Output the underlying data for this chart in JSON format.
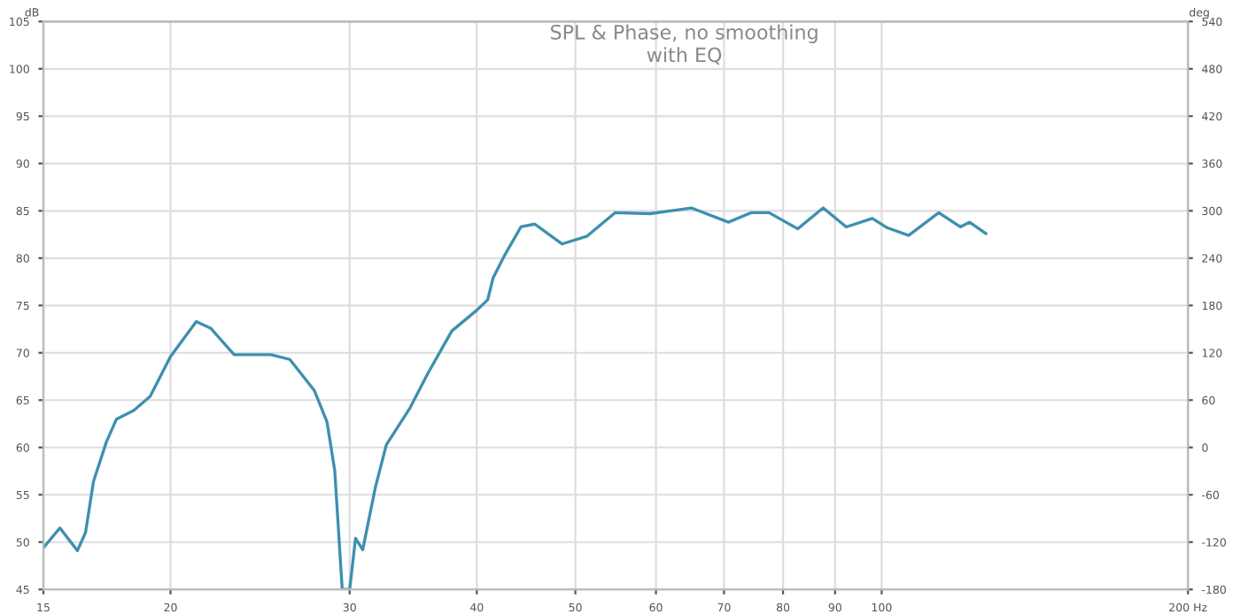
{
  "chart_data": {
    "type": "line",
    "title": "SPL & Phase, no smoothing",
    "subtitle": "with EQ",
    "ylabel": "dB",
    "y2label": "deg",
    "x": [
      15,
      15.57,
      16.2,
      16.5,
      16.8,
      17.3,
      17.7,
      18.4,
      19.1,
      20.0,
      21.2,
      21.9,
      23.1,
      25.1,
      26.2,
      27.7,
      28.5,
      29.0,
      29.5,
      30.0,
      30.4,
      30.9,
      31.8,
      32.6,
      34.4,
      35.8,
      37.8,
      40.0,
      41.0,
      41.5,
      42.6,
      44.2,
      45.6,
      48.5,
      51.3,
      54.7,
      59.2,
      65,
      70.7,
      74.4,
      77.5,
      82.7,
      87.6,
      92.3,
      97.9,
      101.3,
      106.3,
      113.8,
      119.5,
      122,
      126.6
    ],
    "series": [
      {
        "color": "#3e8fb0",
        "values": [
          49.4,
          51.5,
          49.1,
          51.0,
          56.4,
          60.6,
          63.0,
          63.9,
          65.4,
          69.6,
          73.3,
          72.6,
          69.8,
          69.8,
          69.3,
          66.0,
          62.7,
          57.6,
          45,
          45,
          50.4,
          49.2,
          55.8,
          60.3,
          64.2,
          67.8,
          72.3,
          74.5,
          75.6,
          77.9,
          80.3,
          83.3,
          83.6,
          81.5,
          82.3,
          84.8,
          84.7,
          85.3,
          83.8,
          84.8,
          84.8,
          83.1,
          85.3,
          83.3,
          84.2,
          83.2,
          82.4,
          84.8,
          83.3,
          83.8,
          82.6
        ]
      }
    ],
    "log": "x",
    "xlim": [
      15,
      200
    ],
    "xticks": [
      15,
      20,
      30,
      40,
      50,
      60,
      70,
      80,
      90,
      100,
      {
        "value": 200,
        "label": "200 Hz"
      }
    ],
    "ylim": [
      45,
      105
    ],
    "yticks": [
      45,
      50,
      55,
      60,
      65,
      70,
      75,
      80,
      85,
      90,
      95,
      100,
      105
    ],
    "y2lim": [
      -180,
      540
    ],
    "y2ticks": [
      -180,
      -120,
      -60,
      0,
      60,
      120,
      180,
      240,
      300,
      360,
      420,
      480,
      540
    ],
    "grid": true,
    "marker": "none",
    "line_style": "solid"
  }
}
